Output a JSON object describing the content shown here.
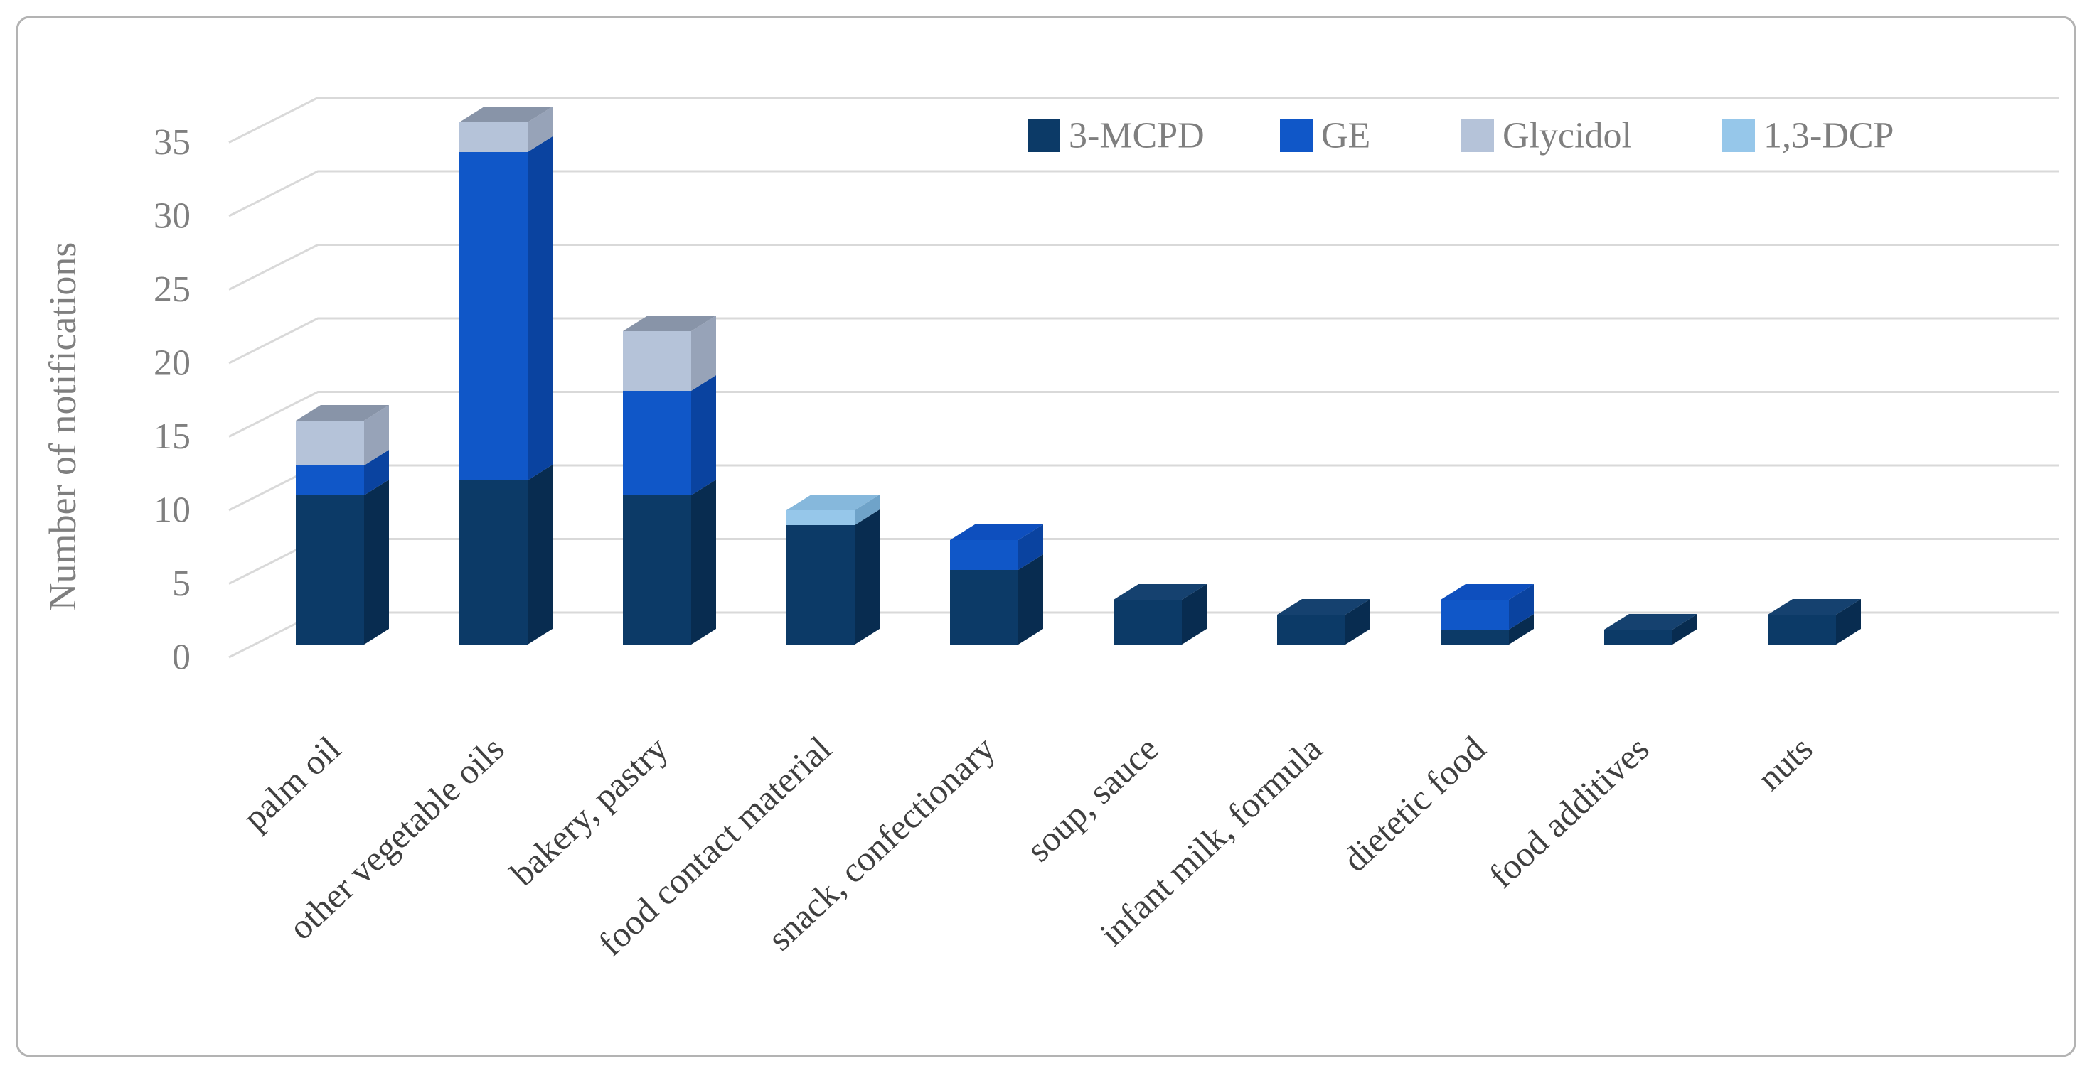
{
  "figure": {
    "background": "#ffffff",
    "border_color": "#b3b3b3"
  },
  "chart_data": {
    "type": "bar",
    "style": "3d-stacked-column",
    "stacked": true,
    "title": "",
    "xlabel": "",
    "ylabel": "Number of notifications",
    "ylim": [
      0,
      35
    ],
    "ytick_step": 5,
    "ytick_labels": [
      "0",
      "5",
      "10",
      "15",
      "20",
      "25",
      "30",
      "35"
    ],
    "grid": true,
    "legend_position": "top-right-inside",
    "categories": [
      "palm oil",
      "other vegetable oils",
      "bakery, pastry",
      "food contact material",
      "snack, confectionary",
      "soup, sauce",
      "infant milk, formula",
      "dietetic food",
      "food additives",
      "nuts"
    ],
    "series": [
      {
        "name": "3-MCPD",
        "color": "#0c3a67",
        "top_color": "#15416f",
        "side_color": "#082c50",
        "values": [
          10,
          11,
          10,
          8,
          5,
          3,
          2,
          1,
          1,
          2
        ]
      },
      {
        "name": "GE",
        "color": "#1057c8",
        "top_color": "#0e4fbe",
        "side_color": "#0a43a0",
        "values": [
          2,
          22,
          7,
          0,
          2,
          0,
          0,
          2,
          0,
          0
        ]
      },
      {
        "name": "Glycidol",
        "color": "#b5c3d9",
        "top_color": "#8894a8",
        "side_color": "#97a3b8",
        "values": [
          3,
          2,
          4,
          0,
          0,
          0,
          0,
          0,
          0,
          0
        ]
      },
      {
        "name": "1,3-DCP",
        "color": "#96c7ea",
        "top_color": "#86b8dc",
        "side_color": "#6fa3c9",
        "values": [
          0,
          0,
          0,
          1,
          0,
          0,
          0,
          0,
          0,
          0
        ]
      }
    ],
    "totals": [
      15,
      35,
      21,
      9,
      7,
      3,
      2,
      3,
      1,
      2
    ]
  },
  "axis_style": {
    "grid_color": "#d9d9d9",
    "tick_label_color": "#7f7f7f",
    "category_label_color": "#404040",
    "ylabel_color": "#7f7f7f",
    "legend_text_color": "#7f7f7f"
  }
}
